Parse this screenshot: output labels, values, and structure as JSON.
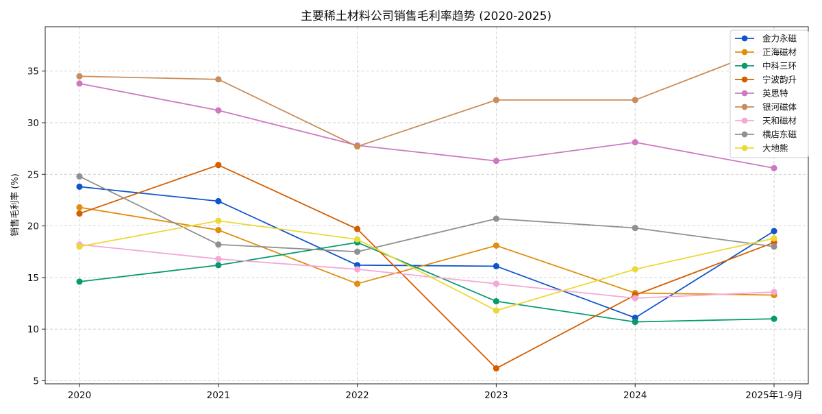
{
  "chart_data": {
    "type": "line",
    "title": "主要稀土材料公司销售毛利率趋势 (2020-2025)",
    "xlabel": "",
    "ylabel": "销售毛利率 (%)",
    "categories": [
      "2020",
      "2021",
      "2022",
      "2023",
      "2024",
      "2025年1-9月"
    ],
    "ylim": [
      4.7,
      39.3
    ],
    "yticks": [
      5,
      10,
      15,
      20,
      25,
      30,
      35
    ],
    "grid": true,
    "legend_position": "top-right",
    "series": [
      {
        "name": "金力永磁",
        "color": "#1155cc",
        "values": [
          23.8,
          22.4,
          16.2,
          16.1,
          11.1,
          19.5
        ]
      },
      {
        "name": "正海磁材",
        "color": "#e08e0b",
        "values": [
          21.8,
          19.6,
          14.4,
          18.1,
          13.5,
          13.3
        ]
      },
      {
        "name": "中科三环",
        "color": "#069a6e",
        "values": [
          14.6,
          16.2,
          18.4,
          12.7,
          10.7,
          11.0
        ]
      },
      {
        "name": "宁波韵升",
        "color": "#d55e00",
        "values": [
          21.2,
          25.9,
          19.7,
          6.2,
          13.3,
          18.4
        ]
      },
      {
        "name": "英思特",
        "color": "#cc79c0",
        "values": [
          33.8,
          31.2,
          27.8,
          26.3,
          28.1,
          25.6
        ]
      },
      {
        "name": "银河磁体",
        "color": "#c98c5a",
        "values": [
          34.5,
          34.2,
          27.7,
          32.2,
          32.2,
          37.4
        ]
      },
      {
        "name": "天和磁材",
        "color": "#f4a8d8",
        "values": [
          18.2,
          16.8,
          15.8,
          14.4,
          13.0,
          13.6
        ]
      },
      {
        "name": "横店东磁",
        "color": "#909090",
        "values": [
          24.8,
          18.2,
          17.5,
          20.7,
          19.8,
          18.0
        ]
      },
      {
        "name": "大地熊",
        "color": "#ecd935",
        "values": [
          18.0,
          20.5,
          18.7,
          11.8,
          15.8,
          18.8
        ]
      }
    ]
  }
}
